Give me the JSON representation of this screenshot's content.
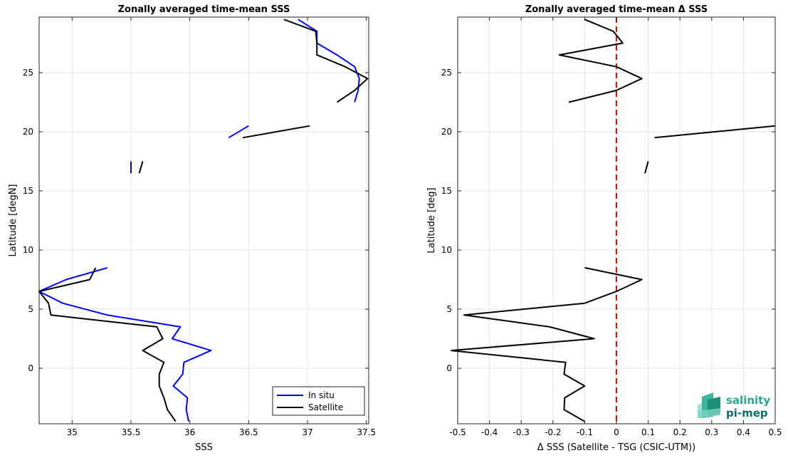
{
  "chart_data": [
    {
      "type": "line",
      "title": "Zonally averaged time-mean SSS",
      "xlabel": "SSS",
      "ylabel": "Latitude [degN]",
      "xlim": [
        34.72,
        37.52
      ],
      "ylim": [
        -4.7,
        29.7
      ],
      "xticks": [
        35,
        35.5,
        36,
        36.5,
        37,
        37.5
      ],
      "xtick_labels": [
        "35",
        "35.5",
        "36",
        "36.5",
        "37",
        "37.5"
      ],
      "yticks": [
        0,
        5,
        10,
        15,
        20,
        25
      ],
      "ytick_labels": [
        "0",
        "5",
        "10",
        "15",
        "20",
        "25"
      ],
      "grid": true,
      "legend": {
        "location": "bottom-right",
        "entries": [
          "In situ",
          "Satellite"
        ]
      },
      "series": [
        {
          "name": "In situ",
          "color": "#0000ff",
          "segments": [
            [
              [
                35.99,
                -4.5
              ],
              [
                35.97,
                -3.5
              ],
              [
                35.98,
                -2.5
              ],
              [
                35.86,
                -1.5
              ],
              [
                35.94,
                -0.5
              ],
              [
                35.95,
                0.5
              ],
              [
                36.18,
                1.5
              ],
              [
                35.85,
                2.5
              ],
              [
                35.92,
                3.5
              ],
              [
                35.3,
                4.5
              ],
              [
                34.92,
                5.5
              ],
              [
                34.72,
                6.5
              ],
              [
                34.95,
                7.5
              ],
              [
                35.3,
                8.5
              ]
            ],
            [
              [
                35.5,
                16.5
              ],
              [
                35.5,
                17.5
              ]
            ],
            [
              [
                36.33,
                19.5
              ],
              [
                36.5,
                20.5
              ]
            ],
            [
              [
                37.4,
                22.5
              ],
              [
                37.43,
                23.5
              ],
              [
                37.44,
                24.5
              ],
              [
                37.4,
                25.5
              ],
              [
                37.25,
                26.5
              ],
              [
                37.08,
                27.5
              ],
              [
                37.08,
                28.5
              ],
              [
                36.92,
                29.5
              ]
            ]
          ]
        },
        {
          "name": "Satellite",
          "color": "#000000",
          "segments": [
            [
              [
                35.88,
                -4.5
              ],
              [
                35.81,
                -3.5
              ],
              [
                35.78,
                -2.5
              ],
              [
                35.74,
                -1.5
              ],
              [
                35.74,
                -0.5
              ],
              [
                35.78,
                0.5
              ],
              [
                35.6,
                1.5
              ],
              [
                35.77,
                2.5
              ],
              [
                35.72,
                3.5
              ],
              [
                34.82,
                4.5
              ],
              [
                34.8,
                5.5
              ],
              [
                34.72,
                6.5
              ],
              [
                35.15,
                7.5
              ],
              [
                35.2,
                8.5
              ]
            ],
            [
              [
                35.57,
                16.5
              ],
              [
                35.6,
                17.5
              ]
            ],
            [
              [
                36.45,
                19.5
              ],
              [
                37.02,
                20.5
              ]
            ],
            [
              [
                37.25,
                22.5
              ],
              [
                37.4,
                23.5
              ],
              [
                37.51,
                24.5
              ],
              [
                37.32,
                25.5
              ],
              [
                37.08,
                26.5
              ],
              [
                37.08,
                27.5
              ],
              [
                37.07,
                28.5
              ],
              [
                36.8,
                29.5
              ]
            ]
          ]
        }
      ]
    },
    {
      "type": "line",
      "title": "Zonally averaged time-mean Δ SSS",
      "xlabel": "Δ SSS (Satellite - TSG (CSIC-UTM))",
      "ylabel": "Latitude [deg]",
      "xlim": [
        -0.5,
        0.5
      ],
      "ylim": [
        -4.7,
        29.7
      ],
      "xticks": [
        -0.5,
        -0.4,
        -0.3,
        -0.2,
        -0.1,
        0,
        0.1,
        0.2,
        0.3,
        0.4,
        0.5
      ],
      "xtick_labels": [
        "-0.5",
        "-0.4",
        "-0.3",
        "-0.2",
        "-0.1",
        "0",
        "0.1",
        "0.2",
        "0.3",
        "0.4",
        "0.5"
      ],
      "yticks": [
        0,
        5,
        10,
        15,
        20,
        25
      ],
      "ytick_labels": [
        "0",
        "5",
        "10",
        "15",
        "20",
        "25"
      ],
      "grid": true,
      "reference_line": {
        "x": 0,
        "color": "#ff0000",
        "style": "dashed"
      },
      "series": [
        {
          "name": "",
          "color": "#000000",
          "segments": [
            [
              [
                -0.1,
                -4.5
              ],
              [
                -0.165,
                -3.5
              ],
              [
                -0.163,
                -2.5
              ],
              [
                -0.1,
                -1.5
              ],
              [
                -0.165,
                -0.5
              ],
              [
                -0.16,
                0.5
              ],
              [
                -0.52,
                1.5
              ],
              [
                -0.07,
                2.5
              ],
              [
                -0.21,
                3.5
              ],
              [
                -0.48,
                4.5
              ],
              [
                -0.1,
                5.5
              ],
              [
                0,
                6.5
              ],
              [
                0.08,
                7.5
              ],
              [
                -0.1,
                8.5
              ]
            ],
            [
              [
                0.09,
                16.5
              ],
              [
                0.1,
                17.5
              ]
            ],
            [
              [
                0.12,
                19.5
              ],
              [
                0.5,
                20.5
              ]
            ],
            [
              [
                -0.15,
                22.5
              ],
              [
                0,
                23.5
              ],
              [
                0.08,
                24.5
              ],
              [
                0,
                25.5
              ],
              [
                -0.18,
                26.5
              ],
              [
                0.02,
                27.5
              ],
              [
                -0.01,
                28.5
              ],
              [
                -0.1,
                29.5
              ]
            ]
          ]
        }
      ]
    }
  ],
  "logo": {
    "line1": "salinity",
    "line2": "pi-mep"
  }
}
